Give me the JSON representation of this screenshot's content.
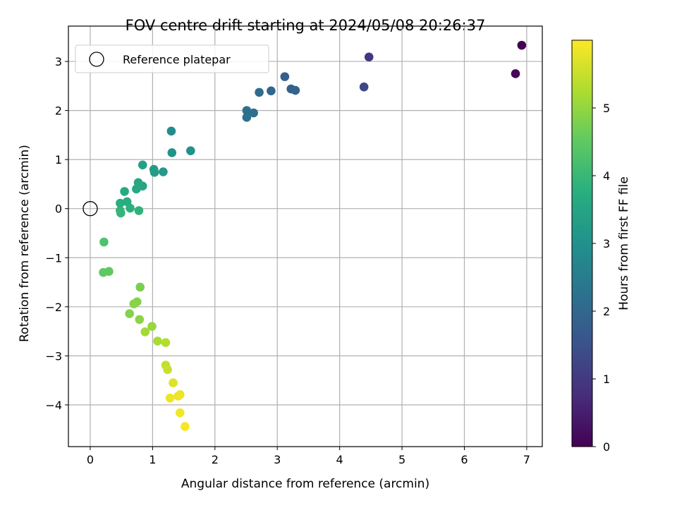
{
  "chart_data": {
    "type": "scatter",
    "title": "FOV centre drift starting at 2024/05/08 20:26:37",
    "xlabel": "Angular distance from reference (arcmin)",
    "ylabel": "Rotation from reference (arcmin)",
    "xlim": [
      -0.35,
      7.25
    ],
    "ylim": [
      -4.85,
      3.72
    ],
    "xticks": [
      0,
      1,
      2,
      3,
      4,
      5,
      6,
      7
    ],
    "yticks": [
      -4,
      -3,
      -2,
      -1,
      0,
      1,
      2,
      3
    ],
    "grid": true,
    "legend": {
      "placement": "upper-left",
      "entries": [
        "Reference platepar"
      ]
    },
    "reference_point": {
      "x": 0,
      "y": 0
    },
    "colorbar": {
      "label": "Hours from first FF file",
      "colormap": "viridis",
      "range": [
        0,
        6
      ],
      "ticks": [
        0,
        1,
        2,
        3,
        4,
        5
      ]
    },
    "points": [
      {
        "x": 6.92,
        "y": 3.33,
        "c": 0.0
      },
      {
        "x": 6.82,
        "y": 2.75,
        "c": 0.1
      },
      {
        "x": 4.47,
        "y": 3.09,
        "c": 0.95
      },
      {
        "x": 4.39,
        "y": 2.48,
        "c": 1.3
      },
      {
        "x": 3.12,
        "y": 2.69,
        "c": 1.8
      },
      {
        "x": 3.22,
        "y": 2.44,
        "c": 1.85
      },
      {
        "x": 3.29,
        "y": 2.41,
        "c": 1.9
      },
      {
        "x": 2.9,
        "y": 2.4,
        "c": 2.0
      },
      {
        "x": 2.71,
        "y": 2.37,
        "c": 2.1
      },
      {
        "x": 2.62,
        "y": 1.95,
        "c": 2.15
      },
      {
        "x": 2.51,
        "y": 2.0,
        "c": 2.2
      },
      {
        "x": 2.51,
        "y": 1.86,
        "c": 2.25
      },
      {
        "x": 1.3,
        "y": 1.58,
        "c": 2.9
      },
      {
        "x": 1.61,
        "y": 1.18,
        "c": 3.0
      },
      {
        "x": 1.31,
        "y": 1.14,
        "c": 3.05
      },
      {
        "x": 1.17,
        "y": 0.75,
        "c": 3.2
      },
      {
        "x": 1.02,
        "y": 0.8,
        "c": 3.25
      },
      {
        "x": 1.03,
        "y": 0.74,
        "c": 3.3
      },
      {
        "x": 0.84,
        "y": 0.89,
        "c": 3.4
      },
      {
        "x": 0.84,
        "y": 0.46,
        "c": 3.5
      },
      {
        "x": 0.77,
        "y": 0.53,
        "c": 3.55
      },
      {
        "x": 0.74,
        "y": 0.4,
        "c": 3.6
      },
      {
        "x": 0.55,
        "y": 0.35,
        "c": 3.65
      },
      {
        "x": 0.59,
        "y": 0.14,
        "c": 3.7
      },
      {
        "x": 0.48,
        "y": 0.11,
        "c": 3.75
      },
      {
        "x": 0.64,
        "y": 0.01,
        "c": 3.8
      },
      {
        "x": 0.78,
        "y": -0.04,
        "c": 3.85
      },
      {
        "x": 0.48,
        "y": -0.04,
        "c": 3.9
      },
      {
        "x": 0.49,
        "y": -0.09,
        "c": 3.95
      },
      {
        "x": 0.22,
        "y": -0.68,
        "c": 4.3
      },
      {
        "x": 0.21,
        "y": -1.3,
        "c": 4.5
      },
      {
        "x": 0.3,
        "y": -1.28,
        "c": 4.5
      },
      {
        "x": 0.8,
        "y": -1.6,
        "c": 4.75
      },
      {
        "x": 0.63,
        "y": -2.14,
        "c": 4.85
      },
      {
        "x": 0.75,
        "y": -1.9,
        "c": 4.85
      },
      {
        "x": 0.7,
        "y": -1.94,
        "c": 4.9
      },
      {
        "x": 0.79,
        "y": -2.26,
        "c": 4.95
      },
      {
        "x": 0.99,
        "y": -2.4,
        "c": 5.05
      },
      {
        "x": 0.88,
        "y": -2.51,
        "c": 5.15
      },
      {
        "x": 1.08,
        "y": -2.7,
        "c": 5.2
      },
      {
        "x": 1.21,
        "y": -2.73,
        "c": 5.3
      },
      {
        "x": 1.21,
        "y": -3.19,
        "c": 5.45
      },
      {
        "x": 1.24,
        "y": -3.28,
        "c": 5.5
      },
      {
        "x": 1.33,
        "y": -3.55,
        "c": 5.7
      },
      {
        "x": 1.44,
        "y": -3.79,
        "c": 5.8
      },
      {
        "x": 1.41,
        "y": -3.82,
        "c": 5.85
      },
      {
        "x": 1.28,
        "y": -3.86,
        "c": 5.85
      },
      {
        "x": 1.44,
        "y": -4.16,
        "c": 5.9
      },
      {
        "x": 1.52,
        "y": -4.44,
        "c": 5.95
      }
    ]
  }
}
